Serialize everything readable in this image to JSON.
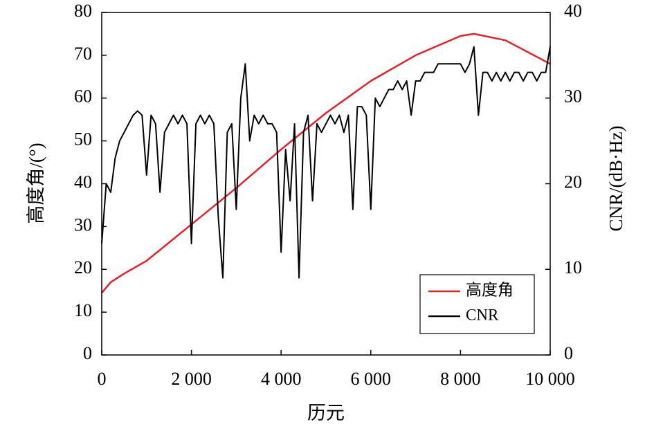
{
  "chart_data": {
    "type": "line",
    "xlabel": "历元",
    "ylabel": "高度角/(°)",
    "y2label": "CNR/(dB·Hz)",
    "xlim": [
      0,
      10000
    ],
    "xticks": [
      0,
      {
        "value": 2000,
        "label": "2 000"
      },
      {
        "value": 4000,
        "label": "4 000"
      },
      {
        "value": 6000,
        "label": "6 000"
      },
      {
        "value": 8000,
        "label": "8 000"
      },
      {
        "value": 10000,
        "label": "10 000"
      }
    ],
    "ylim": [
      0,
      80
    ],
    "yticks": [
      0,
      10,
      20,
      30,
      40,
      50,
      60,
      70,
      80
    ],
    "y2lim": [
      0,
      40
    ],
    "y2ticks": [
      0,
      10,
      20,
      30,
      40
    ],
    "legend": "lower right",
    "series": [
      {
        "name": "高度角",
        "color": "#e8202a",
        "axis": "y",
        "x": [
          0,
          200,
          500,
          1000,
          2000,
          3000,
          4000,
          5000,
          6000,
          7000,
          8000,
          8300,
          9000,
          10000
        ],
        "values": [
          14.5,
          17,
          19,
          22,
          30.5,
          39,
          48,
          56.5,
          64,
          70,
          74.5,
          75,
          73.5,
          68
        ]
      },
      {
        "name": "CNR",
        "color": "#000000",
        "axis": "y2",
        "x": [
          0,
          100,
          200,
          300,
          400,
          500,
          600,
          700,
          800,
          900,
          1000,
          1100,
          1200,
          1300,
          1400,
          1500,
          1600,
          1700,
          1800,
          1900,
          2000,
          2100,
          2200,
          2300,
          2400,
          2500,
          2600,
          2700,
          2800,
          2900,
          3000,
          3100,
          3200,
          3300,
          3400,
          3500,
          3600,
          3700,
          3800,
          3900,
          4000,
          4100,
          4200,
          4300,
          4400,
          4500,
          4600,
          4700,
          4800,
          4900,
          5000,
          5100,
          5200,
          5300,
          5400,
          5500,
          5600,
          5700,
          5800,
          5900,
          6000,
          6100,
          6200,
          6300,
          6400,
          6500,
          6600,
          6700,
          6800,
          6900,
          7000,
          7100,
          7200,
          7300,
          7400,
          7500,
          7600,
          7700,
          7800,
          7900,
          8000,
          8100,
          8200,
          8300,
          8400,
          8500,
          8600,
          8700,
          8800,
          8900,
          9000,
          9100,
          9200,
          9300,
          9400,
          9500,
          9600,
          9700,
          9800,
          9900,
          10000
        ],
        "values": [
          13,
          20,
          19,
          23,
          25,
          26,
          27,
          28,
          28.5,
          28,
          21,
          28,
          27,
          19,
          26,
          27,
          28,
          27,
          28,
          27,
          13,
          27,
          28,
          27,
          28,
          27,
          16,
          9,
          26,
          27,
          17,
          30,
          34,
          25,
          28,
          27,
          28,
          27,
          27,
          26,
          12,
          24,
          18,
          27,
          9,
          26,
          28,
          18,
          27,
          26,
          27,
          28,
          27,
          28,
          26,
          28,
          17,
          29,
          29,
          28,
          17,
          30,
          29,
          30,
          31,
          31,
          32,
          31,
          32,
          28,
          32,
          32,
          33,
          33,
          33,
          34,
          34,
          34,
          34,
          34,
          34,
          33,
          34,
          36,
          28,
          33,
          33,
          32,
          33,
          32,
          33,
          32,
          33,
          33,
          32,
          33,
          33,
          32,
          33,
          33,
          36
        ]
      }
    ]
  }
}
